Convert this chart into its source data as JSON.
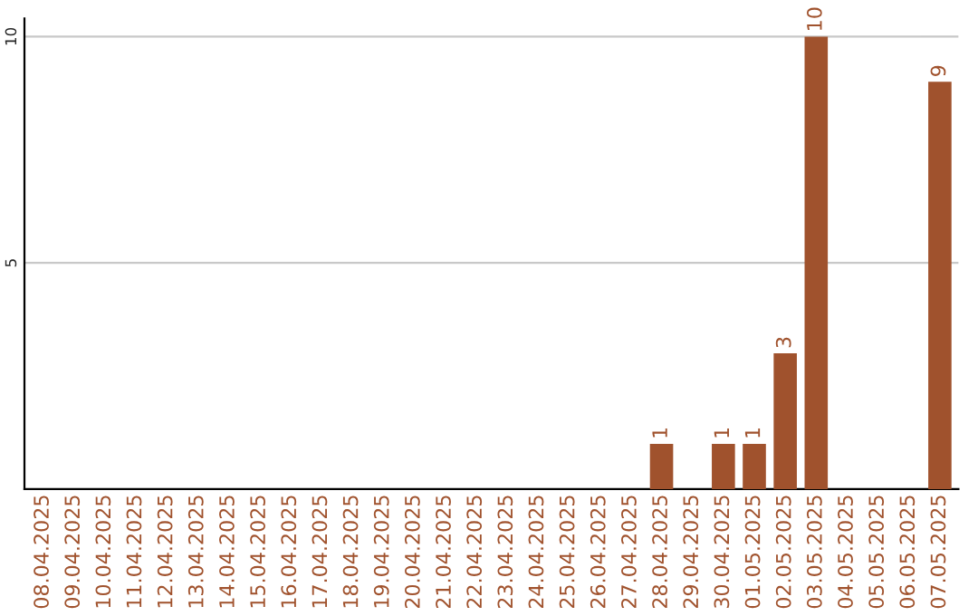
{
  "chart_data": {
    "type": "bar",
    "categories": [
      "08.04.2025",
      "09.04.2025",
      "10.04.2025",
      "11.04.2025",
      "12.04.2025",
      "13.04.2025",
      "14.04.2025",
      "15.04.2025",
      "16.04.2025",
      "17.04.2025",
      "18.04.2025",
      "19.04.2025",
      "20.04.2025",
      "21.04.2025",
      "22.04.2025",
      "23.04.2025",
      "24.04.2025",
      "25.04.2025",
      "26.04.2025",
      "27.04.2025",
      "28.04.2025",
      "29.04.2025",
      "30.04.2025",
      "01.05.2025",
      "02.05.2025",
      "03.05.2025",
      "04.05.2025",
      "05.05.2025",
      "06.05.2025",
      "07.05.2025"
    ],
    "values": [
      null,
      null,
      null,
      null,
      null,
      null,
      null,
      null,
      null,
      null,
      null,
      null,
      null,
      null,
      null,
      null,
      null,
      null,
      null,
      null,
      1,
      null,
      1,
      1,
      3,
      10,
      null,
      null,
      null,
      9
    ],
    "value_labels": [
      null,
      null,
      null,
      null,
      null,
      null,
      null,
      null,
      null,
      null,
      null,
      null,
      null,
      null,
      null,
      null,
      null,
      null,
      null,
      null,
      "1",
      null,
      "1",
      "1",
      "3",
      "10",
      null,
      null,
      null,
      "9"
    ],
    "color": "#a0522d",
    "ylim": [
      0,
      10.4
    ],
    "yticks": [
      5,
      10
    ],
    "grid": "y"
  }
}
